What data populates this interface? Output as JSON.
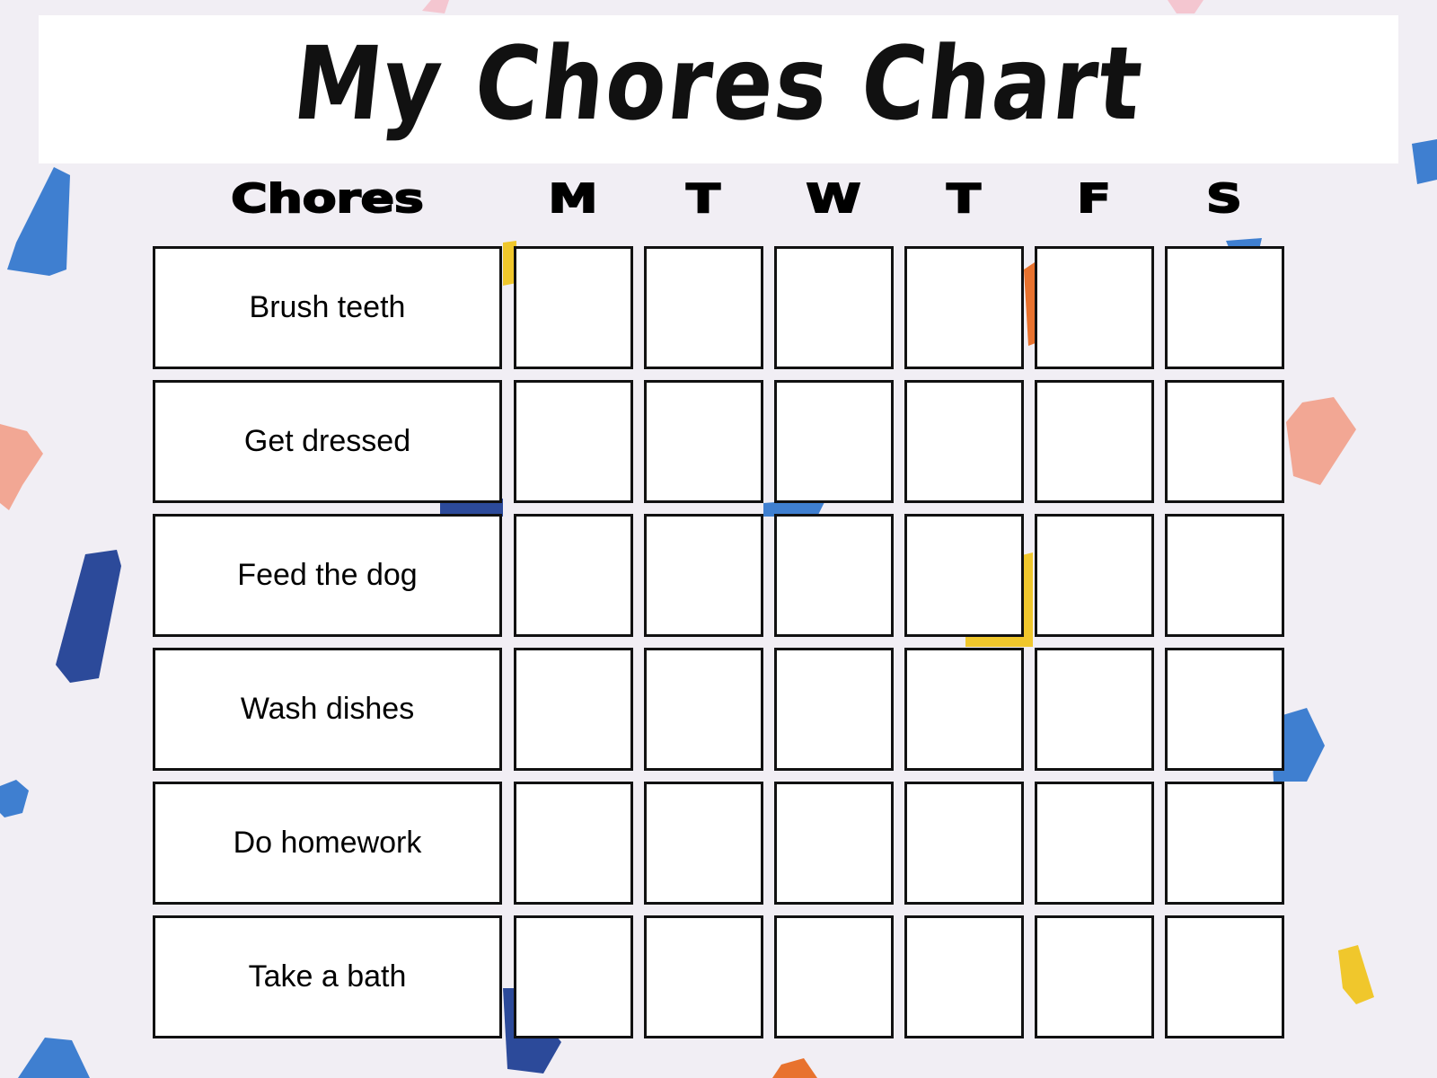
{
  "title": "My Chores Chart",
  "columns": {
    "chores_label": "Chores",
    "days": [
      "M",
      "T",
      "W",
      "T",
      "F",
      "S"
    ]
  },
  "chores": [
    "Brush teeth",
    "Get dressed",
    "Feed the dog",
    "Wash dishes",
    "Do homework",
    "Take a bath"
  ],
  "checked": [
    [],
    [],
    [],
    [],
    [],
    []
  ],
  "colors": {
    "background": "#f1eef4",
    "confetti": [
      "#3f7fd0",
      "#2c4a9a",
      "#f2a794",
      "#f0c72c",
      "#e8722e",
      "#f4c6d0"
    ]
  }
}
